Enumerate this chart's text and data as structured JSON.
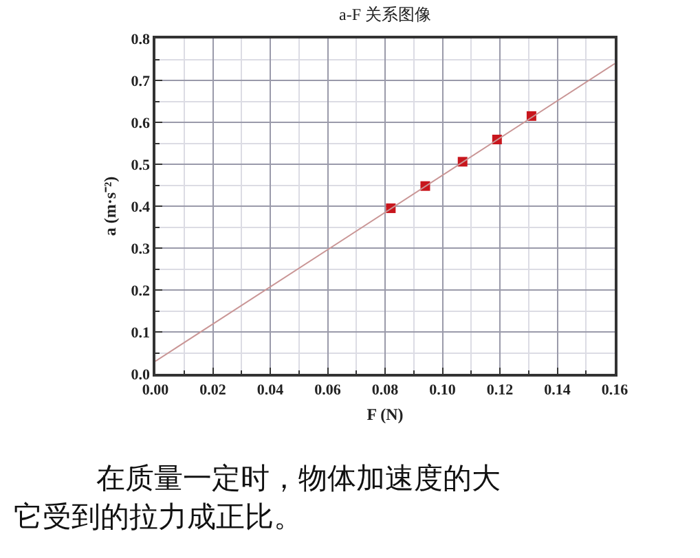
{
  "chart_data": {
    "type": "scatter",
    "title": "a-F 关系图像",
    "xlabel": "F (N)",
    "ylabel": "a (m·s⁻²)",
    "series": [
      {
        "color": "#c8161d",
        "x": [
          0.082,
          0.094,
          0.107,
          0.119,
          0.131
        ],
        "values": [
          0.395,
          0.448,
          0.506,
          0.559,
          0.615
        ],
        "marker": "square"
      },
      {
        "type": "line",
        "color": "#c99595",
        "x": [
          0,
          0.16
        ],
        "values": [
          0.03,
          0.74
        ],
        "marker": "none"
      }
    ],
    "xlim": [
      0,
      0.16
    ],
    "xticks": [
      {
        "value": 0,
        "label": "0.00"
      },
      0.02,
      0.04,
      0.06,
      0.08,
      {
        "value": 0.1,
        "label": "0.10"
      },
      0.12,
      0.14,
      0.16
    ],
    "ylim": [
      0,
      0.8
    ],
    "yticks": [
      {
        "value": 0,
        "label": "0.0"
      },
      0.1,
      0.2,
      0.3,
      0.4,
      0.5,
      0.6,
      0.7,
      0.8
    ],
    "grid": true,
    "annotations": [
      "在质量一定时，物体加速度的大",
      "它受到的拉力成正比。"
    ]
  }
}
